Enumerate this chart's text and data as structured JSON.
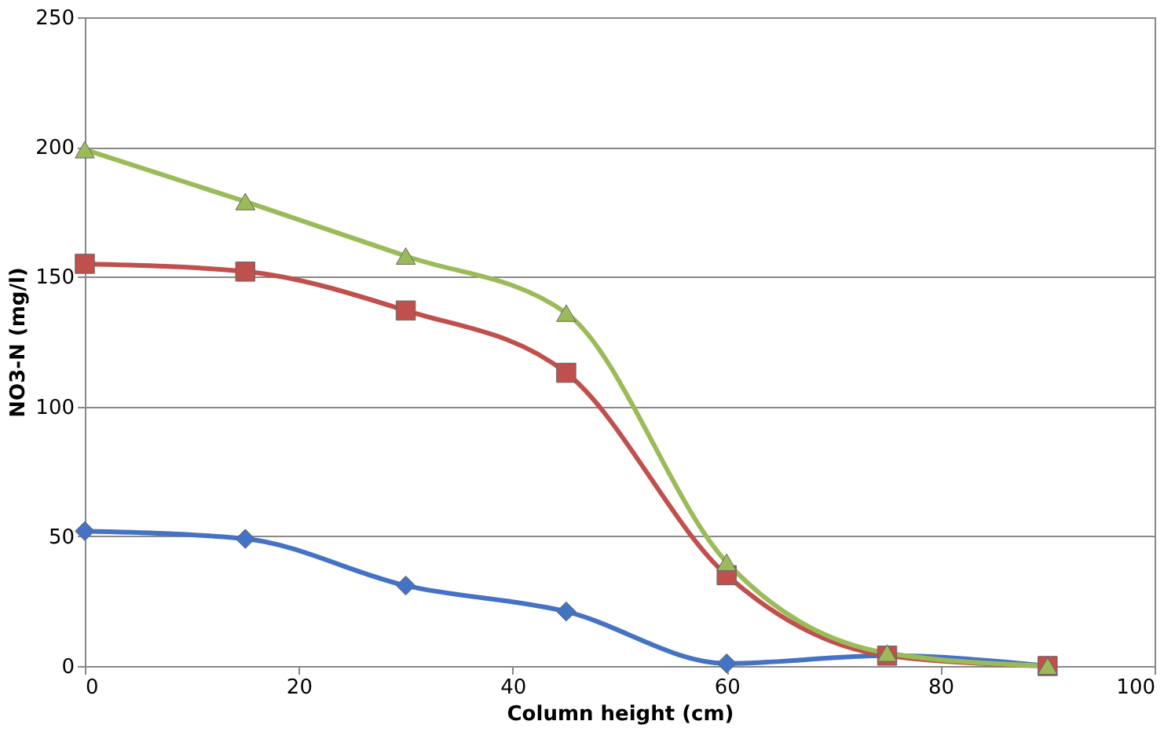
{
  "chart_data": {
    "type": "line",
    "xlabel": "Column height (cm)",
    "ylabel": "NO3-N (mg/l)",
    "x": [
      0,
      15,
      30,
      45,
      60,
      75,
      90
    ],
    "series": [
      {
        "color": "#4472c4",
        "marker": "diamond",
        "values": [
          52,
          49,
          31,
          21,
          1,
          4,
          0
        ]
      },
      {
        "color": "#c0504d",
        "marker": "square",
        "values": [
          155,
          152,
          137,
          113,
          35,
          4,
          0
        ]
      },
      {
        "color": "#9bbb59",
        "marker": "triangle",
        "values": [
          199,
          179,
          158,
          136,
          40,
          5,
          0
        ]
      }
    ],
    "xlim": [
      0,
      100
    ],
    "xticks": [
      0,
      20,
      40,
      60,
      80,
      100
    ],
    "ylim": [
      0,
      250
    ],
    "yticks": [
      0,
      50,
      100,
      150,
      200,
      250
    ],
    "grid": "y"
  }
}
